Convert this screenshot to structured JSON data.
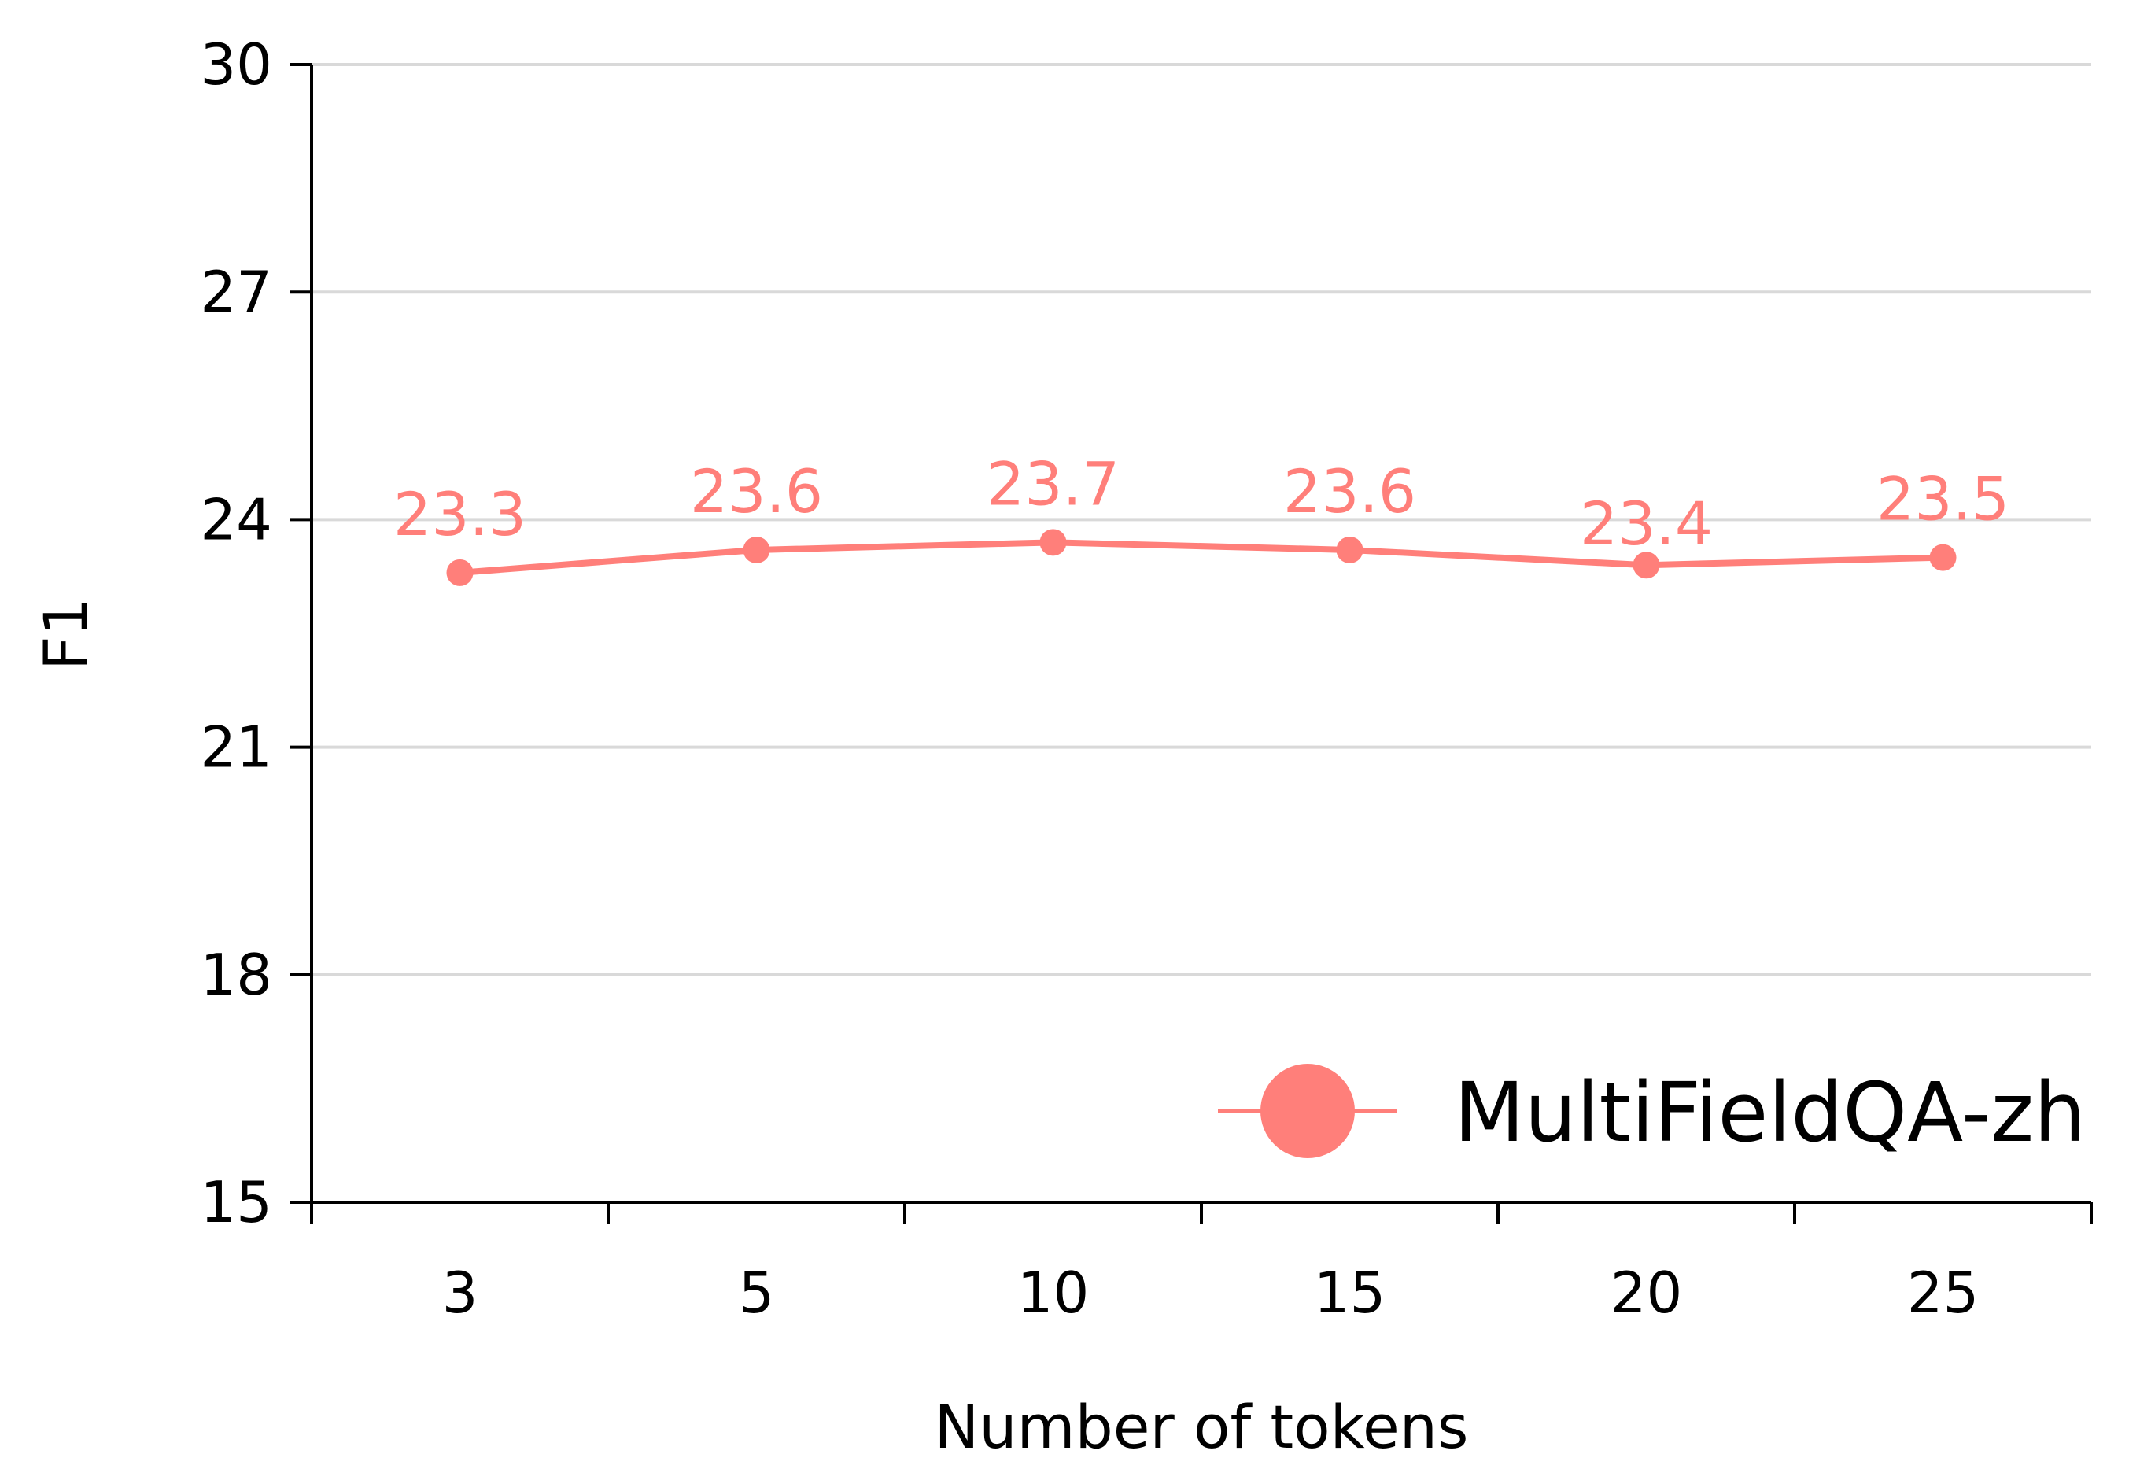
{
  "chart_data": {
    "type": "line",
    "categories": [
      "3",
      "5",
      "10",
      "15",
      "20",
      "25"
    ],
    "series": [
      {
        "name": "MultiFieldQA-zh",
        "values": [
          23.3,
          23.6,
          23.7,
          23.6,
          23.4,
          23.5
        ],
        "labels": [
          "23.3",
          "23.6",
          "23.7",
          "23.6",
          "23.4",
          "23.5"
        ],
        "color": "#ff7f7a"
      }
    ],
    "xlabel": "Number of tokens",
    "ylabel": "F1",
    "ylim": [
      15,
      30
    ],
    "yticks": [
      15,
      18,
      21,
      24,
      27,
      30
    ],
    "grid": "horizontal",
    "legend_position": "bottom-right"
  }
}
